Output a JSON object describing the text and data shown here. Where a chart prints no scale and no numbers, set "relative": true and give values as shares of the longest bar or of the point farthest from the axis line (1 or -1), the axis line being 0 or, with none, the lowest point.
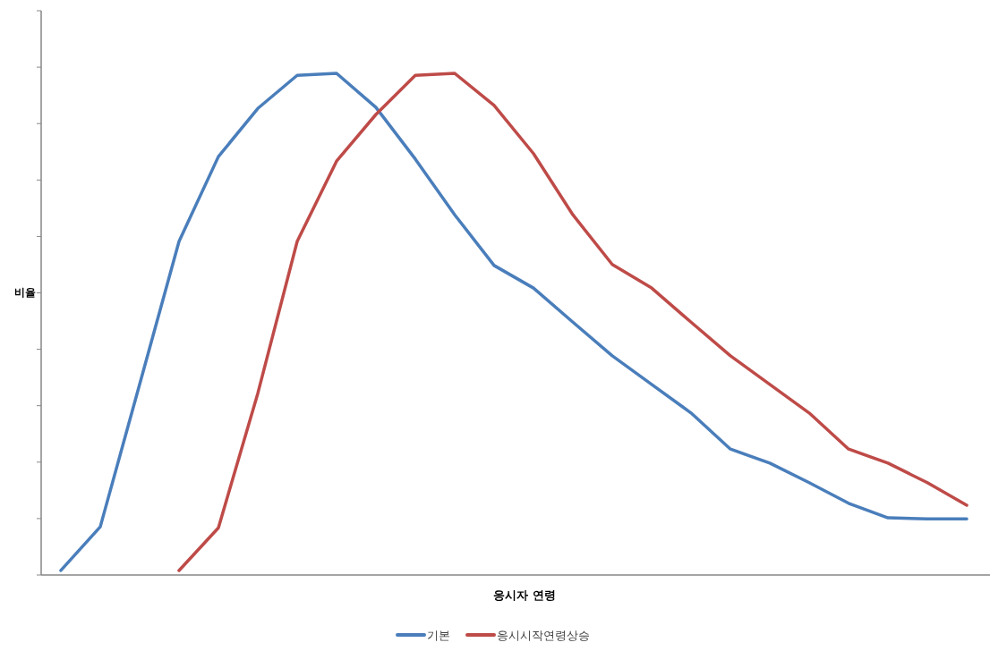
{
  "chart_data": {
    "type": "line",
    "relative": true,
    "xlabel": "응시자 연령",
    "ylabel": "비율",
    "legend": "bottom",
    "marker": "none",
    "line_style": "solid",
    "categories": [
      null,
      null,
      null,
      null,
      null,
      null,
      null,
      null,
      null,
      null,
      null,
      null,
      null,
      null,
      null,
      null,
      null,
      null,
      null,
      null,
      null,
      null,
      null,
      null
    ],
    "series": [
      {
        "name": "기본",
        "color": "#4a7ebb",
        "values": [
          0.009,
          0.096,
          0.38,
          0.665,
          0.834,
          0.93,
          0.996,
          1,
          0.932,
          0.829,
          0.718,
          0.617,
          0.572,
          0.504,
          0.437,
          0.38,
          0.323,
          0.251,
          0.223,
          0.184,
          0.143,
          0.114,
          0.112,
          0.112
        ]
      },
      {
        "name": "응시시작연령상승",
        "color": "#be4b48",
        "values": [
          null,
          null,
          null,
          0.009,
          0.094,
          0.362,
          0.665,
          0.825,
          0.918,
          0.996,
          1,
          0.936,
          0.84,
          0.718,
          0.619,
          0.572,
          0.504,
          0.437,
          0.38,
          0.323,
          0.251,
          0.223,
          0.184,
          0.139
        ]
      }
    ]
  }
}
